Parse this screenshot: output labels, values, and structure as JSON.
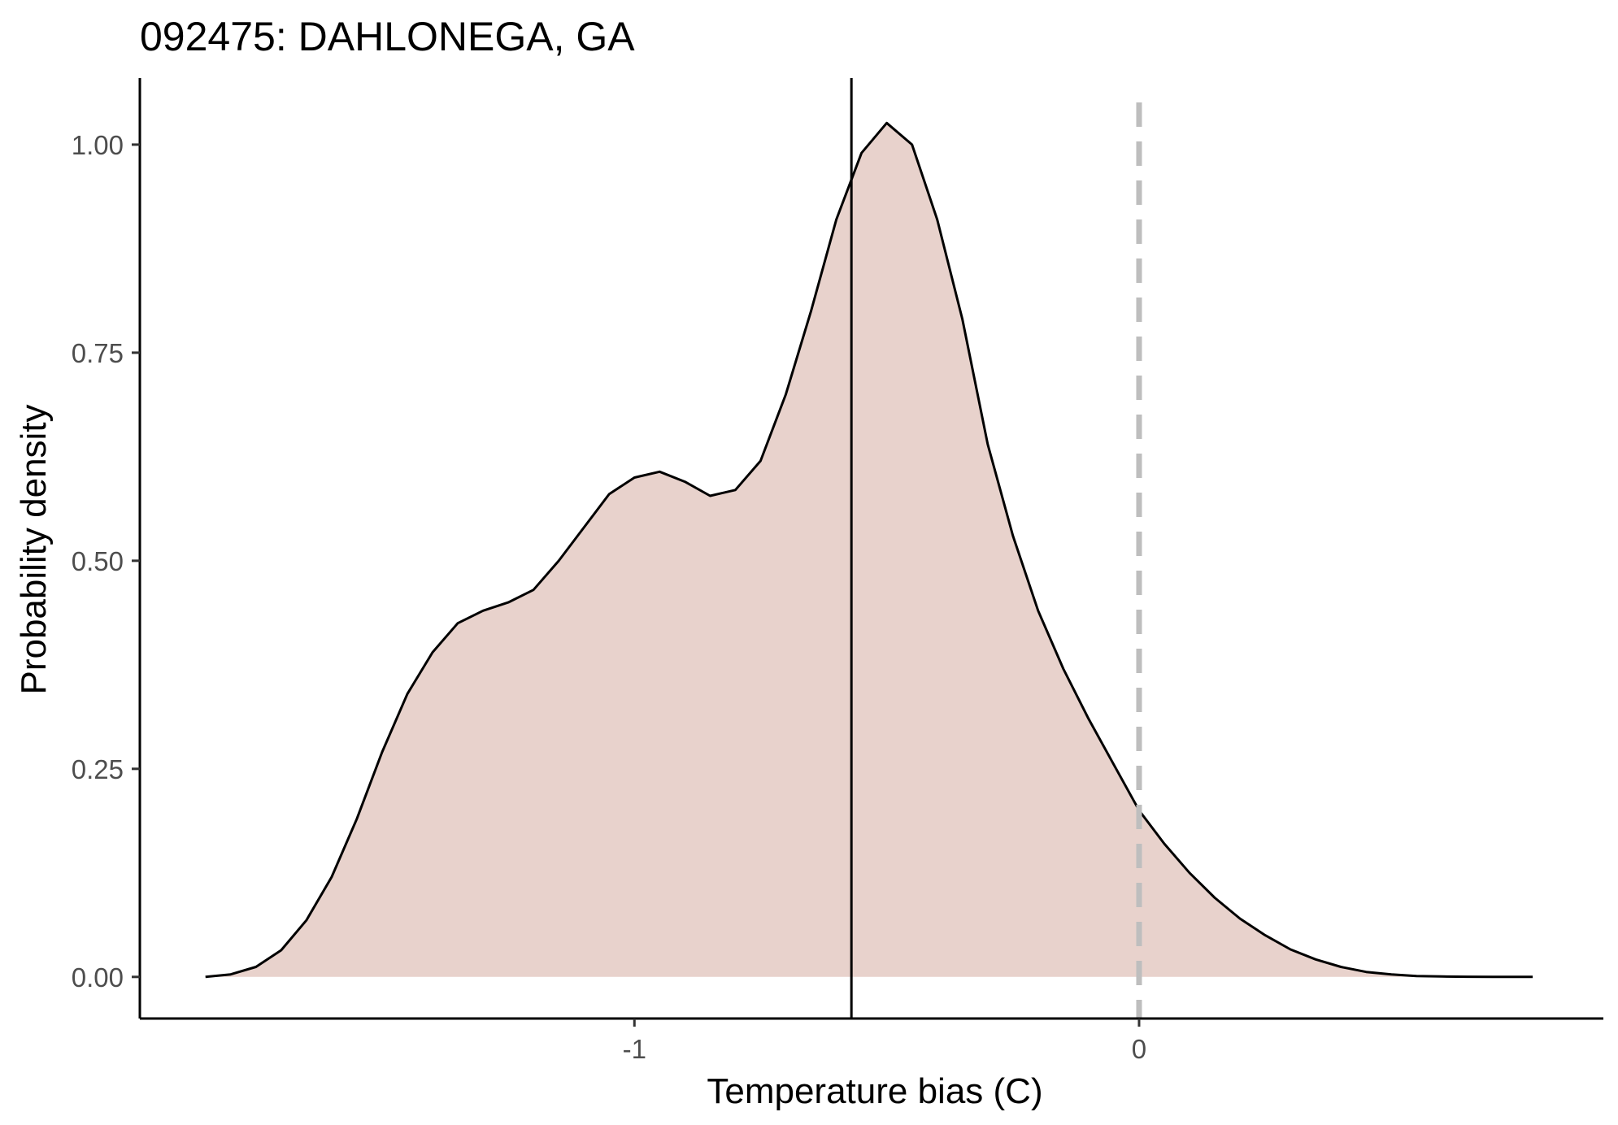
{
  "chart_data": {
    "type": "area",
    "title": "092475: DAHLONEGA, GA",
    "xlabel": "Temperature bias (C)",
    "ylabel": "Probability density",
    "xlim": [
      -1.98,
      0.92
    ],
    "ylim": [
      -0.05,
      1.08
    ],
    "x_ticks": [
      {
        "value": -1,
        "label": "-1"
      },
      {
        "value": 0,
        "label": "0"
      }
    ],
    "y_ticks": [
      {
        "value": 0.0,
        "label": "0.00"
      },
      {
        "value": 0.25,
        "label": "0.25"
      },
      {
        "value": 0.5,
        "label": "0.50"
      },
      {
        "value": 0.75,
        "label": "0.75"
      },
      {
        "value": 1.0,
        "label": "1.00"
      }
    ],
    "grid": false,
    "legend": "none",
    "colors": {
      "fill": "#e8d2cc",
      "line": "#000000",
      "mean_line": "#000000",
      "zero_line": "#bebebe",
      "axis": "#000000"
    },
    "mean_x": -0.57,
    "reference_x": 0,
    "density": {
      "x": [
        -1.85,
        -1.8,
        -1.75,
        -1.7,
        -1.65,
        -1.6,
        -1.55,
        -1.5,
        -1.45,
        -1.4,
        -1.35,
        -1.3,
        -1.25,
        -1.2,
        -1.15,
        -1.1,
        -1.05,
        -1.0,
        -0.95,
        -0.9,
        -0.85,
        -0.8,
        -0.75,
        -0.7,
        -0.65,
        -0.6,
        -0.55,
        -0.5,
        -0.45,
        -0.4,
        -0.35,
        -0.3,
        -0.25,
        -0.2,
        -0.15,
        -0.1,
        -0.05,
        0.0,
        0.05,
        0.1,
        0.15,
        0.2,
        0.25,
        0.3,
        0.35,
        0.4,
        0.45,
        0.5,
        0.55,
        0.6,
        0.65,
        0.7,
        0.75,
        0.78
      ],
      "y": [
        0.0,
        0.003,
        0.012,
        0.032,
        0.068,
        0.12,
        0.19,
        0.27,
        0.34,
        0.39,
        0.425,
        0.44,
        0.45,
        0.465,
        0.5,
        0.54,
        0.58,
        0.6,
        0.607,
        0.595,
        0.578,
        0.585,
        0.62,
        0.7,
        0.8,
        0.91,
        0.99,
        1.026,
        1.0,
        0.91,
        0.79,
        0.64,
        0.53,
        0.44,
        0.37,
        0.31,
        0.255,
        0.2,
        0.16,
        0.125,
        0.095,
        0.07,
        0.05,
        0.033,
        0.021,
        0.012,
        0.006,
        0.003,
        0.001,
        0.0005,
        0.0002,
        0.0001,
        0.0,
        0.0
      ]
    }
  }
}
